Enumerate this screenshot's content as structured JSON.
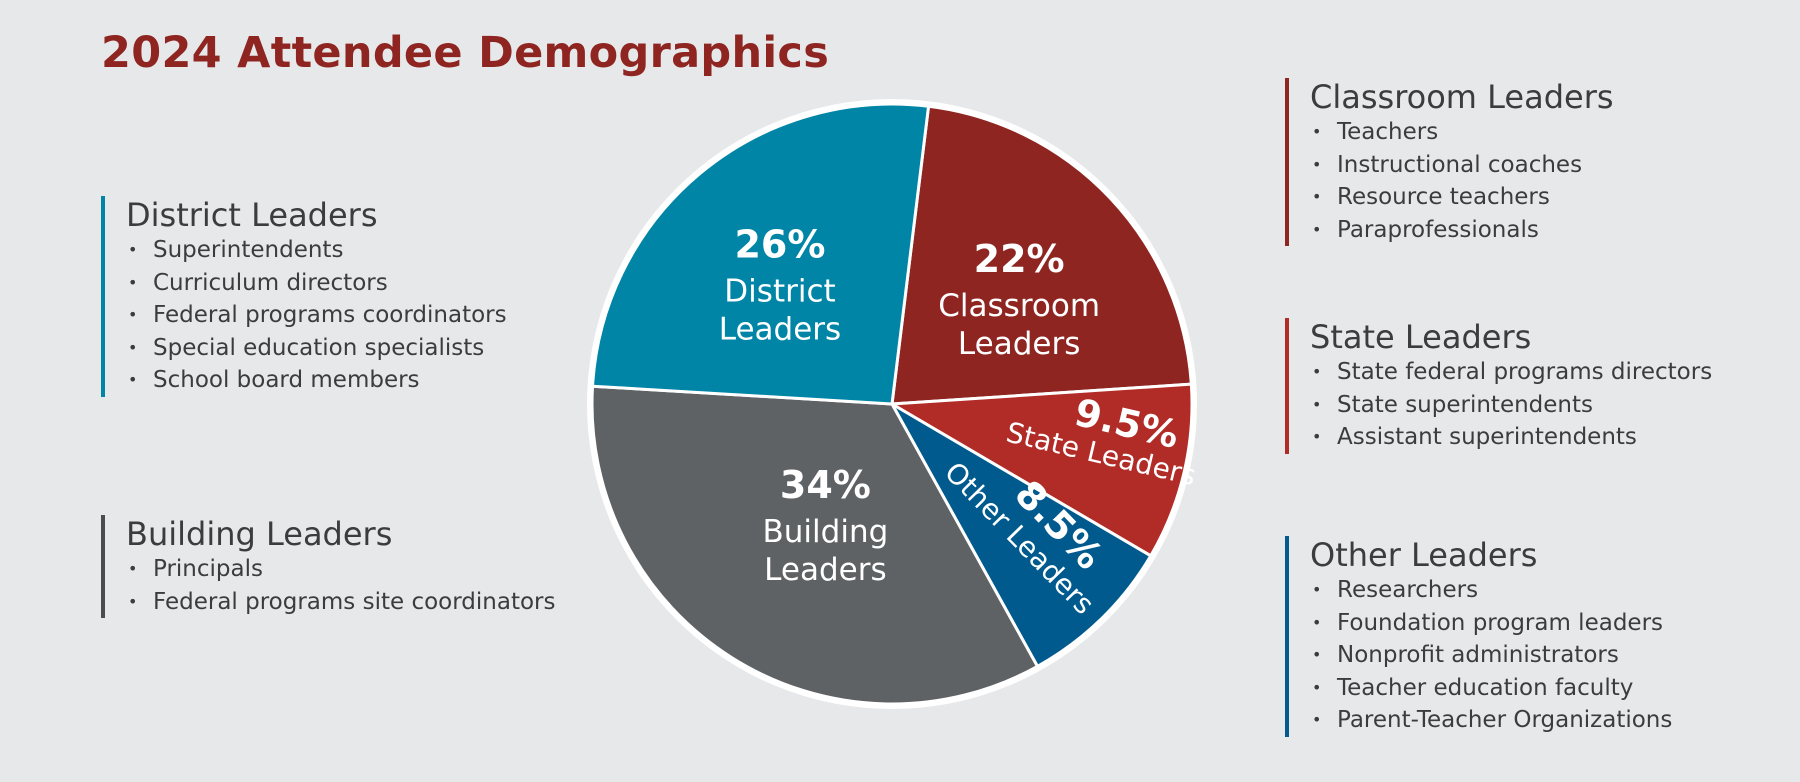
{
  "title": "2024 Attendee Demographics",
  "colors": {
    "title": "#8e2521",
    "district": "#0085a6",
    "classroom": "#8e2521",
    "state": "#b12b27",
    "other": "#005a8e",
    "building": "#5f6265",
    "text": "#3a3c3f",
    "background": "#e7e8ea"
  },
  "groups": {
    "district": {
      "title": "District Leaders",
      "items": [
        "Superintendents",
        "Curriculum directors",
        "Federal programs coordinators",
        "Special education specialists",
        "School board members"
      ]
    },
    "building": {
      "title": "Building Leaders",
      "items": [
        "Principals",
        "Federal programs site coordinators"
      ]
    },
    "classroom": {
      "title": "Classroom Leaders",
      "items": [
        "Teachers",
        "Instructional coaches",
        "Resource teachers",
        "Paraprofessionals"
      ]
    },
    "state": {
      "title": "State Leaders",
      "items": [
        "State federal programs directors",
        "State superintendents",
        "Assistant superintendents"
      ]
    },
    "other": {
      "title": "Other Leaders",
      "items": [
        "Researchers",
        "Foundation program leaders",
        "Nonprofit administrators",
        "Teacher education faculty",
        "Parent-Teacher Organizations"
      ]
    }
  },
  "chart_data": {
    "type": "pie",
    "title": "2024 Attendee Demographics",
    "slices": [
      {
        "label": "Classroom Leaders",
        "value": 22,
        "display": "22%",
        "color": "#8e2521"
      },
      {
        "label": "State Leaders",
        "value": 9.5,
        "display": "9.5%",
        "color": "#b12b27"
      },
      {
        "label": "Other Leaders",
        "value": 8.5,
        "display": "8.5%",
        "color": "#005a8e"
      },
      {
        "label": "Building Leaders",
        "value": 34,
        "display": "34%",
        "color": "#5f6265"
      },
      {
        "label": "District Leaders",
        "value": 26,
        "display": "26%",
        "color": "#0085a6"
      }
    ]
  }
}
